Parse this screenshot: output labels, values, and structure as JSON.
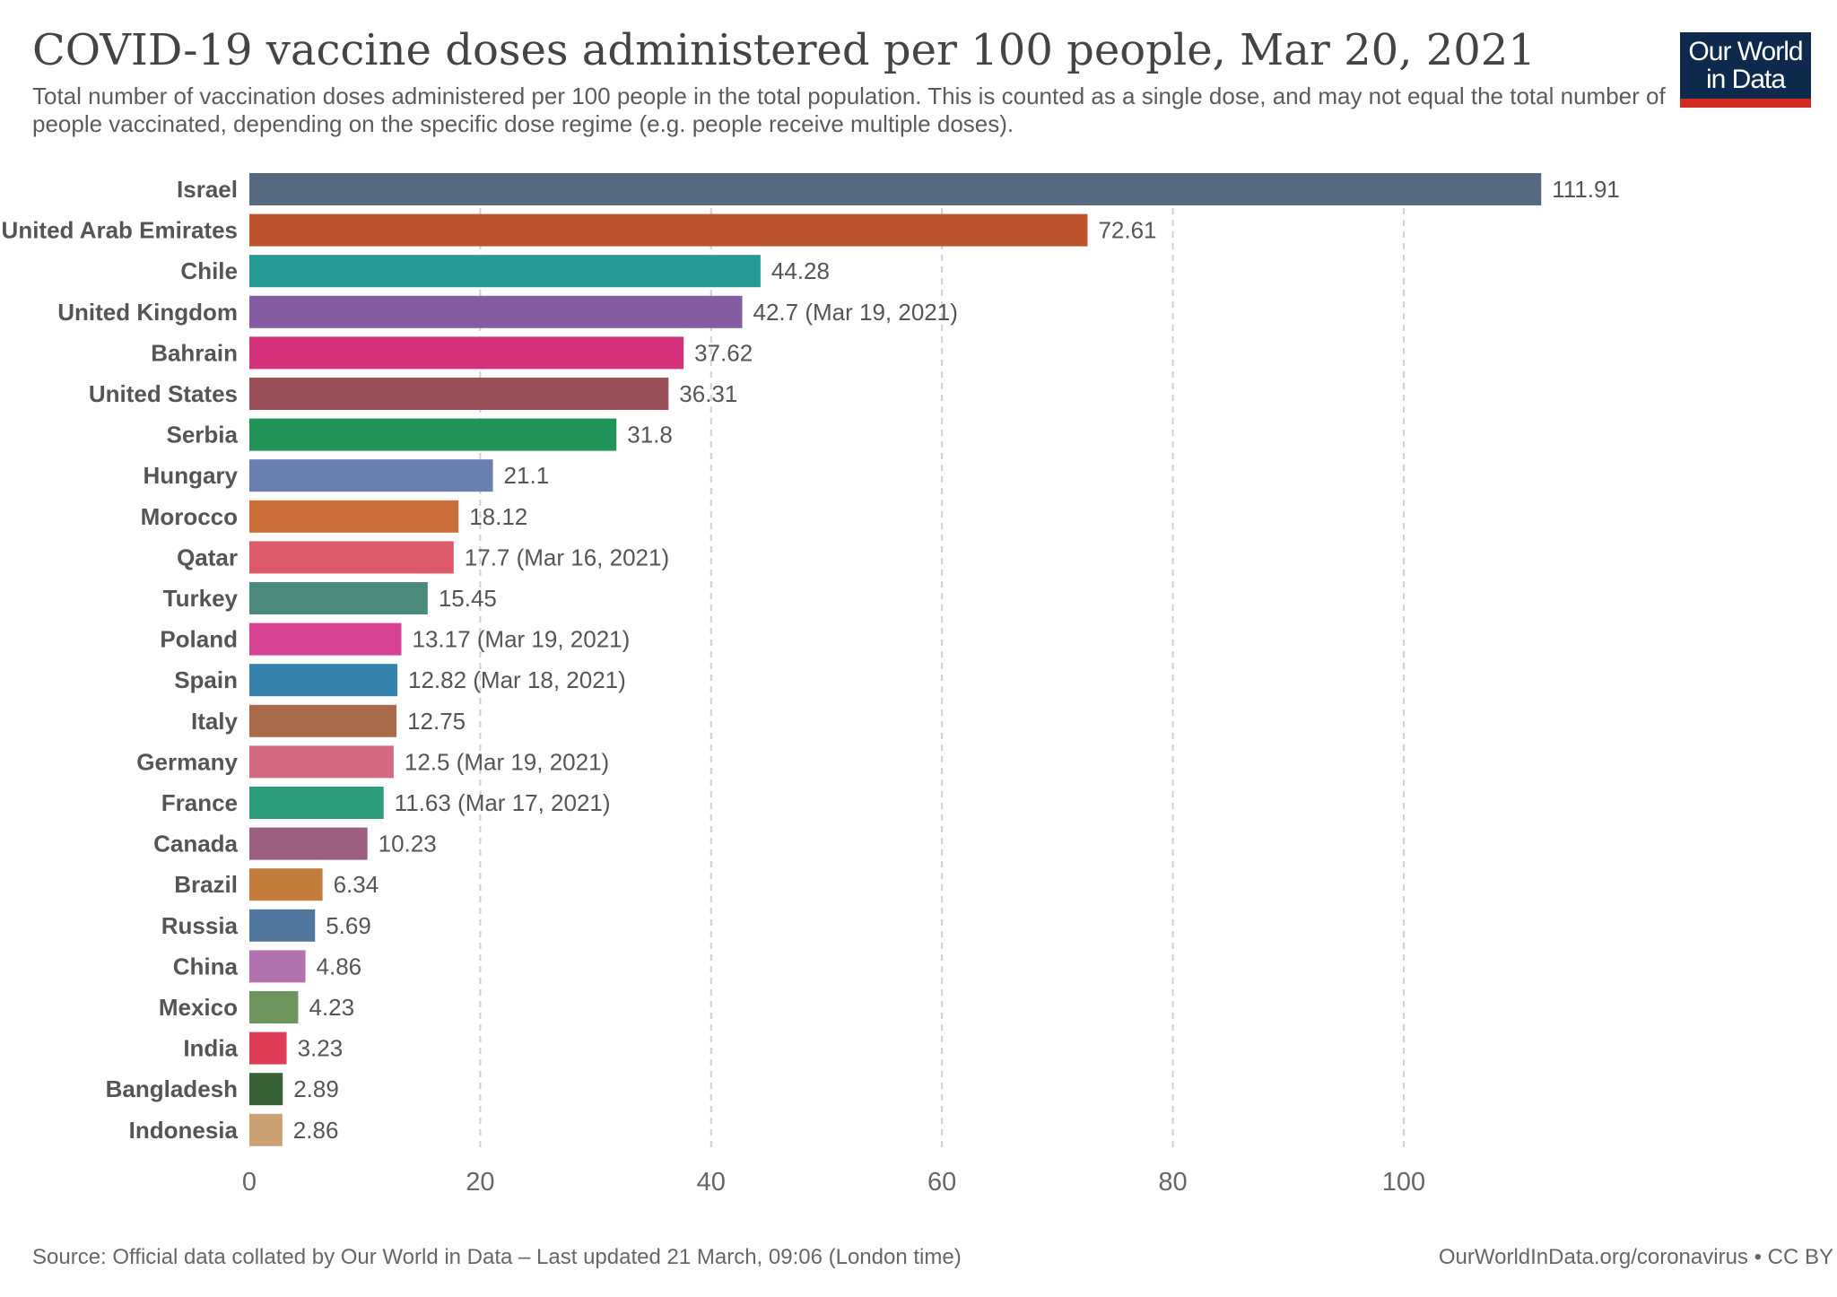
{
  "chart_data": {
    "type": "bar",
    "orientation": "horizontal",
    "title": "COVID-19 vaccine doses administered per 100 people, Mar 20, 2021",
    "subtitle": "Total number of vaccination doses administered per 100 people in the total population. This is counted as a single dose, and may not equal the total number of people vaccinated, depending on the specific dose regime (e.g. people receive multiple doses).",
    "xlim": [
      0,
      115
    ],
    "xticks": [
      0,
      20,
      40,
      60,
      80,
      100
    ],
    "grid": "vertical dashed",
    "categories": [
      "Israel",
      "United Arab Emirates",
      "Chile",
      "United Kingdom",
      "Bahrain",
      "United States",
      "Serbia",
      "Hungary",
      "Morocco",
      "Qatar",
      "Turkey",
      "Poland",
      "Spain",
      "Italy",
      "Germany",
      "France",
      "Canada",
      "Brazil",
      "Russia",
      "China",
      "Mexico",
      "India",
      "Bangladesh",
      "Indonesia"
    ],
    "values": [
      111.91,
      72.61,
      44.28,
      42.7,
      37.62,
      36.31,
      31.8,
      21.1,
      18.12,
      17.7,
      15.45,
      13.17,
      12.82,
      12.75,
      12.5,
      11.63,
      10.23,
      6.34,
      5.69,
      4.86,
      4.23,
      3.23,
      2.89,
      2.86
    ],
    "value_labels": [
      "111.91",
      "72.61",
      "44.28",
      "42.7 (Mar 19, 2021)",
      "37.62",
      "36.31",
      "31.8",
      "21.1",
      "18.12",
      "17.7 (Mar 16, 2021)",
      "15.45",
      "13.17 (Mar 19, 2021)",
      "12.82 (Mar 18, 2021)",
      "12.75",
      "12.5 (Mar 19, 2021)",
      "11.63 (Mar 17, 2021)",
      "10.23",
      "6.34",
      "5.69",
      "4.86",
      "4.23",
      "3.23",
      "2.89",
      "2.86"
    ],
    "colors": [
      "#576980",
      "#be542e",
      "#259a94",
      "#865ca3",
      "#d6327c",
      "#9a4f59",
      "#219359",
      "#6a7fad",
      "#c96f37",
      "#dd5a6a",
      "#4b8a7d",
      "#d84293",
      "#3684ad",
      "#aa6b4d",
      "#d1697f",
      "#2c9c7a",
      "#9a5e7f",
      "#c47c3d",
      "#52779e",
      "#b172b0",
      "#6e955e",
      "#df3e58",
      "#386136",
      "#c9a173"
    ]
  },
  "logo": {
    "line1": "Our World",
    "line2": "in Data"
  },
  "footer": {
    "source": "Source: Official data collated by Our World in Data – Last updated 21 March, 09:06 (London time)",
    "license": "OurWorldInData.org/coronavirus • CC BY"
  }
}
